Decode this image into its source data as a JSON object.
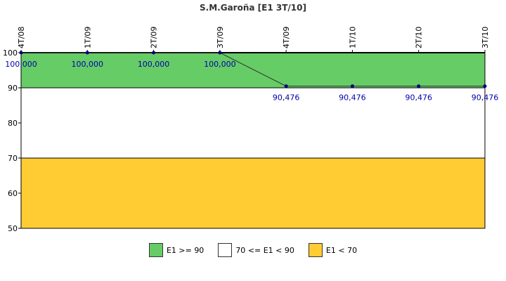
{
  "chart_data": {
    "type": "line",
    "title": "S.M.Garoña [E1 3T/10]",
    "categories": [
      "4T/08",
      "1T/09",
      "2T/09",
      "3T/09",
      "4T/09",
      "1T/10",
      "2T/10",
      "3T/10"
    ],
    "series": [
      {
        "values": [
          100.0,
          100.0,
          100.0,
          100.0,
          90.476,
          90.476,
          90.476,
          90.476
        ],
        "labels": [
          "100,000",
          "100,000",
          "100,000",
          "100,000",
          "90,476",
          "90,476",
          "90,476",
          "90,476"
        ],
        "color": "#000080"
      }
    ],
    "ylim": [
      50,
      100
    ],
    "yticks": [
      "50",
      "60",
      "70",
      "80",
      "90",
      "100"
    ],
    "grid": false,
    "bands": [
      {
        "from": 90,
        "to": 100,
        "color": "#66cc66"
      },
      {
        "from": 70,
        "to": 90,
        "color": "#ffffff"
      },
      {
        "from": 50,
        "to": 70,
        "color": "#ffcc33"
      }
    ],
    "legend_position": "bottom"
  },
  "legend": [
    {
      "label": "E1 >= 90",
      "color": "#66cc66"
    },
    {
      "label": "70 <= E1 < 90",
      "color": "#ffffff"
    },
    {
      "label": "E1 < 70",
      "color": "#ffcc33"
    }
  ]
}
